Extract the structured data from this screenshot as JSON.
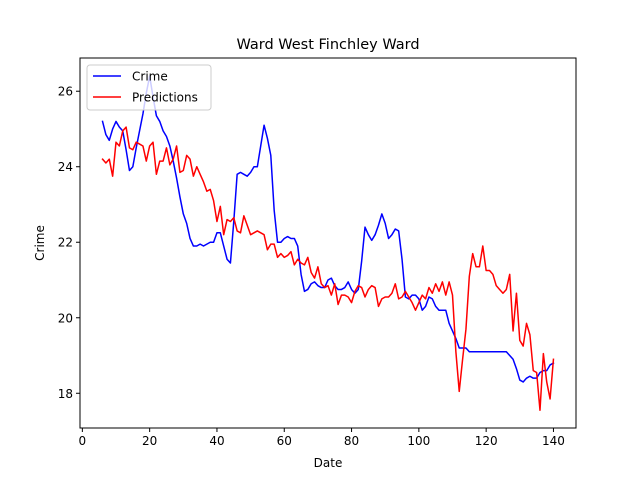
{
  "chart_data": {
    "type": "line",
    "title": "Ward West Finchley Ward",
    "xlabel": "Date",
    "ylabel": "Crime",
    "xlim": [
      -0.7,
      146.7
    ],
    "ylim": [
      17.08,
      26.88
    ],
    "xticks": [
      0,
      20,
      40,
      60,
      80,
      100,
      120,
      140
    ],
    "yticks": [
      18,
      20,
      22,
      24,
      26
    ],
    "grid": false,
    "legend_position": "top-left",
    "series": [
      {
        "name": "Crime",
        "color": "#0000ff",
        "points": [
          [
            6,
            25.2
          ],
          [
            7,
            24.85
          ],
          [
            8,
            24.7
          ],
          [
            9,
            25.0
          ],
          [
            10,
            25.2
          ],
          [
            11,
            25.05
          ],
          [
            12,
            24.95
          ],
          [
            13,
            24.45
          ],
          [
            14,
            23.9
          ],
          [
            15,
            24.0
          ],
          [
            16,
            24.5
          ],
          [
            17,
            24.95
          ],
          [
            18,
            25.4
          ],
          [
            19,
            25.95
          ],
          [
            20,
            26.4
          ],
          [
            21,
            25.85
          ],
          [
            22,
            25.35
          ],
          [
            23,
            25.2
          ],
          [
            24,
            24.95
          ],
          [
            25,
            24.8
          ],
          [
            26,
            24.55
          ],
          [
            27,
            24.15
          ],
          [
            28,
            23.7
          ],
          [
            29,
            23.2
          ],
          [
            30,
            22.75
          ],
          [
            31,
            22.5
          ],
          [
            32,
            22.1
          ],
          [
            33,
            21.9
          ],
          [
            34,
            21.9
          ],
          [
            35,
            21.95
          ],
          [
            36,
            21.9
          ],
          [
            37,
            21.95
          ],
          [
            38,
            22.0
          ],
          [
            39,
            22.0
          ],
          [
            40,
            22.25
          ],
          [
            41,
            22.25
          ],
          [
            42,
            21.9
          ],
          [
            43,
            21.55
          ],
          [
            44,
            21.45
          ],
          [
            45,
            22.55
          ],
          [
            46,
            23.8
          ],
          [
            47,
            23.85
          ],
          [
            48,
            23.8
          ],
          [
            49,
            23.75
          ],
          [
            50,
            23.85
          ],
          [
            51,
            24.0
          ],
          [
            52,
            24.0
          ],
          [
            53,
            24.55
          ],
          [
            54,
            25.1
          ],
          [
            55,
            24.75
          ],
          [
            56,
            24.3
          ],
          [
            57,
            22.85
          ],
          [
            58,
            22.0
          ],
          [
            59,
            22.0
          ],
          [
            60,
            22.1
          ],
          [
            61,
            22.15
          ],
          [
            62,
            22.1
          ],
          [
            63,
            22.1
          ],
          [
            64,
            21.9
          ],
          [
            65,
            21.15
          ],
          [
            66,
            20.7
          ],
          [
            67,
            20.75
          ],
          [
            68,
            20.9
          ],
          [
            69,
            20.95
          ],
          [
            70,
            20.85
          ],
          [
            71,
            20.8
          ],
          [
            72,
            20.8
          ],
          [
            73,
            21.0
          ],
          [
            74,
            21.05
          ],
          [
            75,
            20.85
          ],
          [
            76,
            20.75
          ],
          [
            77,
            20.75
          ],
          [
            78,
            20.8
          ],
          [
            79,
            20.95
          ],
          [
            80,
            20.75
          ],
          [
            81,
            20.65
          ],
          [
            82,
            20.75
          ],
          [
            83,
            21.5
          ],
          [
            84,
            22.4
          ],
          [
            85,
            22.2
          ],
          [
            86,
            22.05
          ],
          [
            87,
            22.2
          ],
          [
            88,
            22.45
          ],
          [
            89,
            22.75
          ],
          [
            90,
            22.5
          ],
          [
            91,
            22.1
          ],
          [
            92,
            22.2
          ],
          [
            93,
            22.35
          ],
          [
            94,
            22.3
          ],
          [
            95,
            21.55
          ],
          [
            96,
            20.55
          ],
          [
            97,
            20.5
          ],
          [
            98,
            20.6
          ],
          [
            99,
            20.6
          ],
          [
            100,
            20.5
          ],
          [
            101,
            20.2
          ],
          [
            102,
            20.3
          ],
          [
            103,
            20.55
          ],
          [
            104,
            20.5
          ],
          [
            105,
            20.3
          ],
          [
            106,
            20.2
          ],
          [
            107,
            20.2
          ],
          [
            108,
            20.2
          ],
          [
            109,
            19.85
          ],
          [
            110,
            19.65
          ],
          [
            111,
            19.45
          ],
          [
            112,
            19.2
          ],
          [
            113,
            19.2
          ],
          [
            114,
            19.2
          ],
          [
            115,
            19.1
          ],
          [
            116,
            19.1
          ],
          [
            117,
            19.1
          ],
          [
            118,
            19.1
          ],
          [
            119,
            19.1
          ],
          [
            120,
            19.1
          ],
          [
            121,
            19.1
          ],
          [
            122,
            19.1
          ],
          [
            123,
            19.1
          ],
          [
            124,
            19.1
          ],
          [
            125,
            19.1
          ],
          [
            126,
            19.1
          ],
          [
            127,
            19.0
          ],
          [
            128,
            18.9
          ],
          [
            129,
            18.65
          ],
          [
            130,
            18.35
          ],
          [
            131,
            18.3
          ],
          [
            132,
            18.4
          ],
          [
            133,
            18.45
          ],
          [
            134,
            18.4
          ],
          [
            135,
            18.4
          ],
          [
            136,
            18.55
          ],
          [
            137,
            18.6
          ],
          [
            138,
            18.6
          ],
          [
            139,
            18.75
          ],
          [
            140,
            18.8
          ]
        ]
      },
      {
        "name": "Predictions",
        "color": "#ff0000",
        "points": [
          [
            6,
            24.2
          ],
          [
            7,
            24.1
          ],
          [
            8,
            24.2
          ],
          [
            9,
            23.75
          ],
          [
            10,
            24.65
          ],
          [
            11,
            24.55
          ],
          [
            12,
            24.95
          ],
          [
            13,
            25.05
          ],
          [
            14,
            24.5
          ],
          [
            15,
            24.45
          ],
          [
            16,
            24.65
          ],
          [
            17,
            24.6
          ],
          [
            18,
            24.55
          ],
          [
            19,
            24.15
          ],
          [
            20,
            24.55
          ],
          [
            21,
            24.65
          ],
          [
            22,
            23.8
          ],
          [
            23,
            24.15
          ],
          [
            24,
            24.15
          ],
          [
            25,
            24.5
          ],
          [
            26,
            24.05
          ],
          [
            27,
            24.2
          ],
          [
            28,
            24.55
          ],
          [
            29,
            23.85
          ],
          [
            30,
            23.9
          ],
          [
            31,
            24.3
          ],
          [
            32,
            24.2
          ],
          [
            33,
            23.75
          ],
          [
            34,
            24.0
          ],
          [
            35,
            23.8
          ],
          [
            36,
            23.6
          ],
          [
            37,
            23.35
          ],
          [
            38,
            23.4
          ],
          [
            39,
            23.1
          ],
          [
            40,
            22.55
          ],
          [
            41,
            22.95
          ],
          [
            42,
            22.2
          ],
          [
            43,
            22.6
          ],
          [
            44,
            22.55
          ],
          [
            45,
            22.65
          ],
          [
            46,
            22.3
          ],
          [
            47,
            22.25
          ],
          [
            48,
            22.7
          ],
          [
            49,
            22.45
          ],
          [
            50,
            22.2
          ],
          [
            51,
            22.25
          ],
          [
            52,
            22.3
          ],
          [
            53,
            22.25
          ],
          [
            54,
            22.2
          ],
          [
            55,
            21.8
          ],
          [
            56,
            21.95
          ],
          [
            57,
            21.95
          ],
          [
            58,
            21.6
          ],
          [
            59,
            21.7
          ],
          [
            60,
            21.6
          ],
          [
            61,
            21.65
          ],
          [
            62,
            21.75
          ],
          [
            63,
            21.4
          ],
          [
            64,
            21.55
          ],
          [
            65,
            21.45
          ],
          [
            66,
            21.4
          ],
          [
            67,
            21.6
          ],
          [
            68,
            21.2
          ],
          [
            69,
            21.05
          ],
          [
            70,
            21.35
          ],
          [
            71,
            20.9
          ],
          [
            72,
            20.8
          ],
          [
            73,
            20.85
          ],
          [
            74,
            20.6
          ],
          [
            75,
            20.9
          ],
          [
            76,
            20.35
          ],
          [
            77,
            20.6
          ],
          [
            78,
            20.6
          ],
          [
            79,
            20.55
          ],
          [
            80,
            20.4
          ],
          [
            81,
            20.7
          ],
          [
            82,
            20.85
          ],
          [
            83,
            20.8
          ],
          [
            84,
            20.55
          ],
          [
            85,
            20.75
          ],
          [
            86,
            20.85
          ],
          [
            87,
            20.8
          ],
          [
            88,
            20.3
          ],
          [
            89,
            20.5
          ],
          [
            90,
            20.55
          ],
          [
            91,
            20.55
          ],
          [
            92,
            20.65
          ],
          [
            93,
            20.9
          ],
          [
            94,
            20.5
          ],
          [
            95,
            20.55
          ],
          [
            96,
            20.7
          ],
          [
            97,
            20.55
          ],
          [
            98,
            20.4
          ],
          [
            99,
            20.2
          ],
          [
            100,
            20.4
          ],
          [
            101,
            20.6
          ],
          [
            102,
            20.5
          ],
          [
            103,
            20.8
          ],
          [
            104,
            20.65
          ],
          [
            105,
            20.9
          ],
          [
            106,
            20.7
          ],
          [
            107,
            20.95
          ],
          [
            108,
            20.6
          ],
          [
            109,
            20.95
          ],
          [
            110,
            20.6
          ],
          [
            111,
            19.1
          ],
          [
            112,
            18.05
          ],
          [
            113,
            18.9
          ],
          [
            114,
            19.7
          ],
          [
            115,
            21.1
          ],
          [
            116,
            21.7
          ],
          [
            117,
            21.35
          ],
          [
            118,
            21.35
          ],
          [
            119,
            21.9
          ],
          [
            120,
            21.25
          ],
          [
            121,
            21.25
          ],
          [
            122,
            21.15
          ],
          [
            123,
            20.85
          ],
          [
            124,
            20.75
          ],
          [
            125,
            20.65
          ],
          [
            126,
            20.75
          ],
          [
            127,
            21.15
          ],
          [
            128,
            19.65
          ],
          [
            129,
            20.65
          ],
          [
            130,
            19.4
          ],
          [
            131,
            19.25
          ],
          [
            132,
            19.85
          ],
          [
            133,
            19.55
          ],
          [
            134,
            18.6
          ],
          [
            135,
            18.55
          ],
          [
            136,
            17.55
          ],
          [
            137,
            19.05
          ],
          [
            138,
            18.3
          ],
          [
            139,
            17.85
          ],
          [
            140,
            18.9
          ]
        ]
      }
    ]
  }
}
